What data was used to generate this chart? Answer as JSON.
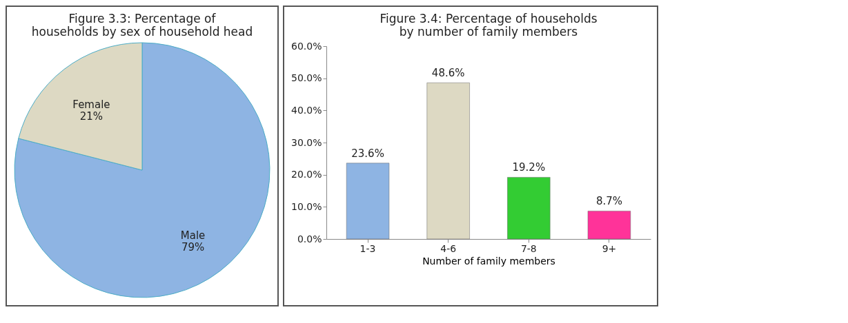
{
  "chart_data": [
    {
      "type": "pie",
      "title": "Figure 3.3: Percentage of households by sex of household head",
      "categories": [
        "Male",
        "Female"
      ],
      "values": [
        79,
        21
      ],
      "colors": [
        "#8eb4e3",
        "#ddd9c3"
      ],
      "value_labels": [
        "79%",
        "21%"
      ]
    },
    {
      "type": "bar",
      "title": "Figure 3.4: Percentage of households by number of family members",
      "xlabel": "Number of family members",
      "categories": [
        "1-3",
        "4-6",
        "7-8",
        "9+"
      ],
      "values": [
        23.6,
        48.6,
        19.2,
        8.7
      ],
      "colors": [
        "#8eb4e3",
        "#ddd9c3",
        "#33cc33",
        "#ff3399"
      ],
      "value_labels": [
        "23.6%",
        "48.6%",
        "19.2%",
        "8.7%"
      ],
      "ylim": [
        0,
        60
      ],
      "yticks": [
        {
          "value": 0,
          "label": "0.0%"
        },
        {
          "value": 10,
          "label": "10.0%"
        },
        {
          "value": 20,
          "label": "20.0%"
        },
        {
          "value": 30,
          "label": "30.0%"
        },
        {
          "value": 40,
          "label": "40.0%"
        },
        {
          "value": 50,
          "label": "50.0%"
        },
        {
          "value": 60,
          "label": "60.0%"
        }
      ]
    }
  ]
}
